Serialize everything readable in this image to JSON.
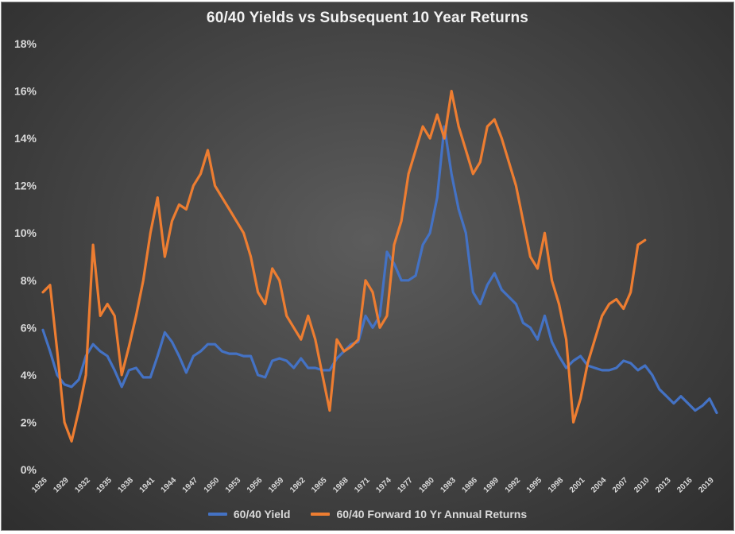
{
  "chart_data": {
    "type": "line",
    "title": "60/40 Yields vs Subsequent 10 Year Returns",
    "xlabel": "",
    "ylabel": "",
    "ylim": [
      0,
      18
    ],
    "xlim": [
      1926,
      2020
    ],
    "grid": false,
    "legend_position": "bottom",
    "y_tick_labels": [
      "0%",
      "2%",
      "4%",
      "6%",
      "8%",
      "10%",
      "12%",
      "14%",
      "16%",
      "18%"
    ],
    "x_tick_labels": [
      "1926",
      "1929",
      "1932",
      "1935",
      "1938",
      "1941",
      "1944",
      "1947",
      "1950",
      "1953",
      "1956",
      "1959",
      "1962",
      "1965",
      "1968",
      "1971",
      "1974",
      "1977",
      "1980",
      "1983",
      "1986",
      "1989",
      "1992",
      "1995",
      "1998",
      "2001",
      "2004",
      "2007",
      "2010",
      "2013",
      "2016",
      "2019"
    ],
    "series": [
      {
        "name": "60/40 Yield",
        "color": "#4472c4",
        "x": [
          1926,
          1927,
          1928,
          1929,
          1930,
          1931,
          1932,
          1933,
          1934,
          1935,
          1936,
          1937,
          1938,
          1939,
          1940,
          1941,
          1942,
          1943,
          1944,
          1945,
          1946,
          1947,
          1948,
          1949,
          1950,
          1951,
          1952,
          1953,
          1954,
          1955,
          1956,
          1957,
          1958,
          1959,
          1960,
          1961,
          1962,
          1963,
          1964,
          1965,
          1966,
          1967,
          1968,
          1969,
          1970,
          1971,
          1972,
          1973,
          1974,
          1975,
          1976,
          1977,
          1978,
          1979,
          1980,
          1981,
          1982,
          1983,
          1984,
          1985,
          1986,
          1987,
          1988,
          1989,
          1990,
          1991,
          1992,
          1993,
          1994,
          1995,
          1996,
          1997,
          1998,
          1999,
          2000,
          2001,
          2002,
          2003,
          2004,
          2005,
          2006,
          2007,
          2008,
          2009,
          2010,
          2011,
          2012,
          2013,
          2014,
          2015,
          2016,
          2017,
          2018,
          2019,
          2020
        ],
        "values": [
          5.9,
          5.0,
          4.0,
          3.6,
          3.5,
          3.8,
          4.8,
          5.3,
          5.0,
          4.8,
          4.2,
          3.5,
          4.2,
          4.3,
          3.9,
          3.9,
          4.8,
          5.8,
          5.4,
          4.8,
          4.1,
          4.8,
          5.0,
          5.3,
          5.3,
          5.0,
          4.9,
          4.9,
          4.8,
          4.8,
          4.0,
          3.9,
          4.6,
          4.7,
          4.6,
          4.3,
          4.7,
          4.3,
          4.3,
          4.2,
          4.2,
          4.7,
          5.0,
          5.3,
          5.4,
          6.5,
          6.0,
          6.5,
          9.2,
          8.7,
          8.0,
          8.0,
          8.2,
          9.5,
          10.0,
          11.5,
          14.5,
          12.5,
          11.0,
          10.0,
          7.5,
          7.0,
          7.8,
          8.3,
          7.6,
          7.3,
          7.0,
          6.2,
          6.0,
          5.5,
          6.5,
          5.4,
          4.8,
          4.3,
          4.6,
          4.8,
          4.4,
          4.3,
          4.2,
          4.2,
          4.3,
          4.6,
          4.5,
          4.2,
          4.4,
          4.0,
          3.4,
          3.1,
          2.8,
          3.1,
          2.8,
          2.5,
          2.7,
          3.0,
          2.4
        ]
      },
      {
        "name": "60/40 Forward 10 Yr Annual Returns",
        "color": "#ed7d31",
        "x": [
          1926,
          1927,
          1928,
          1929,
          1930,
          1931,
          1932,
          1933,
          1934,
          1935,
          1936,
          1937,
          1938,
          1939,
          1940,
          1941,
          1942,
          1943,
          1944,
          1945,
          1946,
          1947,
          1948,
          1949,
          1950,
          1951,
          1952,
          1953,
          1954,
          1955,
          1956,
          1957,
          1958,
          1959,
          1960,
          1961,
          1962,
          1963,
          1964,
          1965,
          1966,
          1967,
          1968,
          1969,
          1970,
          1971,
          1972,
          1973,
          1974,
          1975,
          1976,
          1977,
          1978,
          1979,
          1980,
          1981,
          1982,
          1983,
          1984,
          1985,
          1986,
          1987,
          1988,
          1989,
          1990,
          1991,
          1992,
          1993,
          1994,
          1995,
          1996,
          1997,
          1998,
          1999,
          2000,
          2001,
          2002,
          2003,
          2004,
          2005,
          2006,
          2007,
          2008,
          2009,
          2010
        ],
        "values": [
          7.5,
          7.8,
          5.0,
          2.0,
          1.2,
          2.5,
          4.0,
          9.5,
          6.5,
          7.0,
          6.5,
          4.0,
          5.2,
          6.5,
          8.0,
          10.0,
          11.5,
          9.0,
          10.5,
          11.2,
          11.0,
          12.0,
          12.5,
          13.5,
          12.0,
          11.5,
          11.0,
          10.5,
          10.0,
          9.0,
          7.5,
          7.0,
          8.5,
          8.0,
          6.5,
          6.0,
          5.5,
          6.5,
          5.5,
          4.0,
          2.5,
          5.5,
          5.0,
          5.2,
          5.5,
          8.0,
          7.5,
          6.0,
          6.5,
          9.5,
          10.5,
          12.5,
          13.5,
          14.5,
          14.0,
          15.0,
          14.0,
          16.0,
          14.5,
          13.5,
          12.5,
          13.0,
          14.5,
          14.8,
          14.0,
          13.0,
          12.0,
          10.5,
          9.0,
          8.5,
          10.0,
          8.0,
          7.0,
          5.5,
          2.0,
          3.0,
          4.5,
          5.5,
          6.5,
          7.0,
          7.2,
          6.8,
          7.5,
          9.5,
          9.7
        ]
      }
    ]
  }
}
